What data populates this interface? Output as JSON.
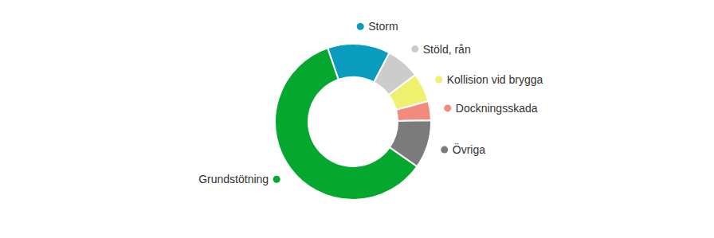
{
  "chart_data": {
    "type": "donut",
    "categories": [
      "Storm",
      "Stöld, rån",
      "Kollision vid brygga",
      "Dockningsskada",
      "Övriga",
      "Grundstötning"
    ],
    "values": [
      13,
      7,
      6,
      4,
      10,
      60
    ],
    "colors": [
      "#0a9cbf",
      "#cccccc",
      "#eef06e",
      "#f28b7d",
      "#7b7b7b",
      "#05a82f"
    ]
  }
}
